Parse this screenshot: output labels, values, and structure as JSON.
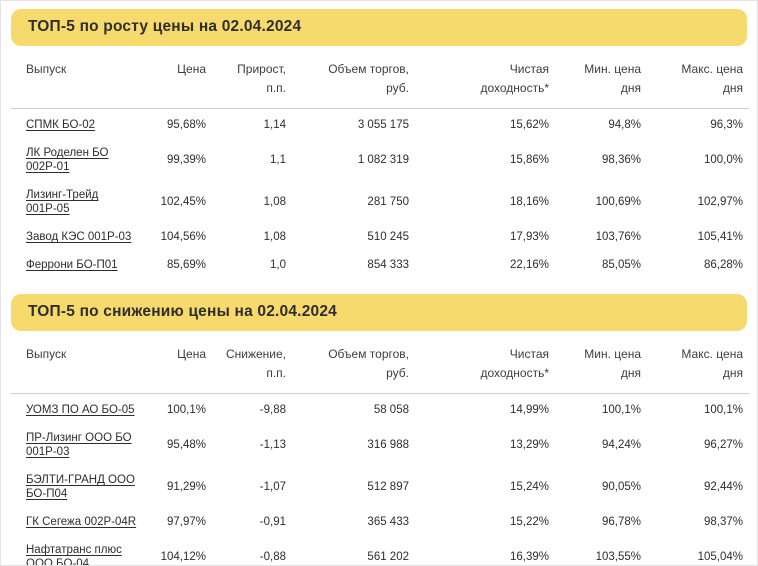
{
  "page": {
    "background": "#ffffff",
    "accent_yellow": "#f7da6d",
    "text_color": "#2d2d2d",
    "divider_color": "#cfcfcf",
    "date": "02.04.2024"
  },
  "tables": [
    {
      "title": "ТОП-5 по росту цены на 02.04.2024",
      "columns": [
        {
          "key": "issue",
          "l1": "Выпуск",
          "l2": ""
        },
        {
          "key": "price",
          "l1": "Цена",
          "l2": ""
        },
        {
          "key": "change-pp",
          "l1": "Прирост,",
          "l2": "п.п."
        },
        {
          "key": "volume-rub",
          "l1": "Объем торгов,",
          "l2": "руб."
        },
        {
          "key": "net-yield",
          "l1": "Чистая",
          "l2": "доходность*"
        },
        {
          "key": "min-price-day",
          "l1": "Мин. цена",
          "l2": "дня"
        },
        {
          "key": "max-price-day",
          "l1": "Макс. цена",
          "l2": "дня"
        }
      ],
      "rows": [
        {
          "cells": [
            "СПМК БО-02",
            "95,68%",
            "1,14",
            "3 055 175",
            "15,62%",
            "94,8%",
            "96,3%"
          ]
        },
        {
          "cells": [
            "ЛК Роделен БО 002Р-01",
            "99,39%",
            "1,1",
            "1 082 319",
            "15,86%",
            "98,36%",
            "100,0%"
          ]
        },
        {
          "cells": [
            "Лизинг-Трейд 001Р-05",
            "102,45%",
            "1,08",
            "281 750",
            "18,16%",
            "100,69%",
            "102,97%"
          ]
        },
        {
          "cells": [
            "Завод КЭС 001Р-03",
            "104,56%",
            "1,08",
            "510 245",
            "17,93%",
            "103,76%",
            "105,41%"
          ]
        },
        {
          "cells": [
            "Феррони БО-П01",
            "85,69%",
            "1,0",
            "854 333",
            "22,16%",
            "85,05%",
            "86,28%"
          ]
        }
      ]
    },
    {
      "title": "ТОП-5 по снижению цены на 02.04.2024",
      "columns": [
        {
          "key": "issue",
          "l1": "Выпуск",
          "l2": ""
        },
        {
          "key": "price",
          "l1": "Цена",
          "l2": ""
        },
        {
          "key": "change-pp",
          "l1": "Снижение,",
          "l2": "п.п."
        },
        {
          "key": "volume-rub",
          "l1": "Объем торгов,",
          "l2": "руб."
        },
        {
          "key": "net-yield",
          "l1": "Чистая",
          "l2": "доходность*"
        },
        {
          "key": "min-price-day",
          "l1": "Мин. цена",
          "l2": "дня"
        },
        {
          "key": "max-price-day",
          "l1": "Макс. цена",
          "l2": "дня"
        }
      ],
      "rows": [
        {
          "cells": [
            "УОМЗ ПО АО БО-05",
            "100,1%",
            "-9,88",
            "58 058",
            "14,99%",
            "100,1%",
            "100,1%"
          ]
        },
        {
          "cells": [
            "ПР-Лизинг ООО БО 001Р-03",
            "95,48%",
            "-1,13",
            "316 988",
            "13,29%",
            "94,24%",
            "96,27%"
          ]
        },
        {
          "cells": [
            "БЭЛТИ-ГРАНД ООО БО-П04",
            "91,29%",
            "-1,07",
            "512 897",
            "15,24%",
            "90,05%",
            "92,44%"
          ]
        },
        {
          "cells": [
            "ГК Сегежа 002Р-04R",
            "97,97%",
            "-0,91",
            "365 433",
            "15,22%",
            "96,78%",
            "98,37%"
          ]
        },
        {
          "cells": [
            "Нафтатранс плюс ООО БО-04",
            "104,12%",
            "-0,88",
            "561 202",
            "16,39%",
            "103,55%",
            "105,04%"
          ]
        }
      ]
    }
  ]
}
